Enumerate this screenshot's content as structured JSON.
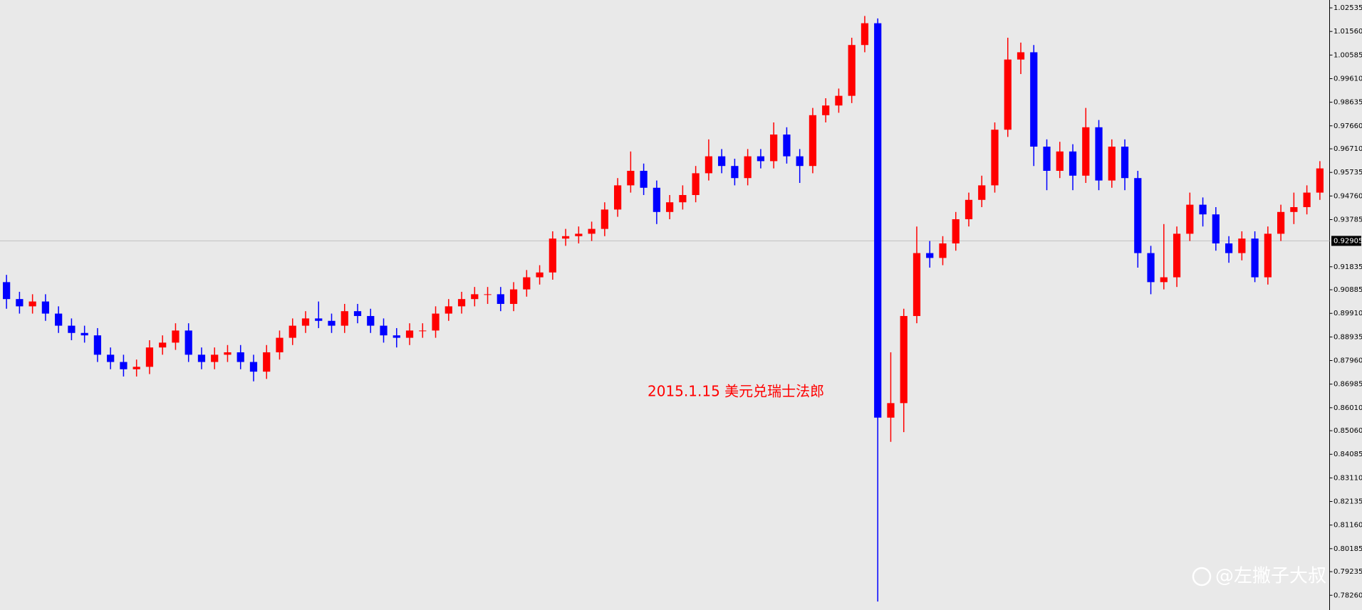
{
  "chart_data": {
    "type": "candlestick",
    "annotation": "2015.1.15 美元兑瑞士法郎",
    "watermark": "@左撇子大叔",
    "up_color": "#ff0000",
    "down_color": "#0000ff",
    "ylim": [
      0.7765,
      1.0286
    ],
    "yticks": [
      1.02535,
      {
        "value": 1.0156,
        "label": "1.01560"
      },
      1.00585,
      {
        "value": 0.9961,
        "label": "0.99610"
      },
      0.98635,
      {
        "value": 0.9766,
        "label": "0.97660"
      },
      {
        "value": 0.9671,
        "label": "0.96710"
      },
      0.95735,
      {
        "value": 0.9476,
        "label": "0.94760"
      },
      0.93785,
      0.91835,
      0.90885,
      {
        "value": 0.8991,
        "label": "0.89910"
      },
      0.88935,
      {
        "value": 0.8796,
        "label": "0.87960"
      },
      0.86985,
      {
        "value": 0.8601,
        "label": "0.86010"
      },
      {
        "value": 0.8506,
        "label": "0.85060"
      },
      0.84085,
      {
        "value": 0.8311,
        "label": "0.83110"
      },
      0.82135,
      {
        "value": 0.8116,
        "label": "0.81160"
      },
      0.80185,
      0.79235,
      {
        "value": 0.7826,
        "label": "0.78260"
      }
    ],
    "current_price": 0.92905,
    "open": [
      0.912,
      0.905,
      0.902,
      0.904,
      0.899,
      0.894,
      0.891,
      0.89,
      0.882,
      0.879,
      0.876,
      0.877,
      0.885,
      0.887,
      0.892,
      0.882,
      0.879,
      0.882,
      0.883,
      0.879,
      0.875,
      0.883,
      0.889,
      0.894,
      0.897,
      0.896,
      0.894,
      0.9,
      0.898,
      0.894,
      0.89,
      0.889,
      0.892,
      0.892,
      0.899,
      0.902,
      0.905,
      0.907,
      0.907,
      0.903,
      0.909,
      0.914,
      0.916,
      0.93,
      0.931,
      0.932,
      0.934,
      0.942,
      0.952,
      0.958,
      0.951,
      0.941,
      0.945,
      0.948,
      0.957,
      0.964,
      0.96,
      0.955,
      0.964,
      0.962,
      0.973,
      0.964,
      0.96,
      0.981,
      0.985,
      0.989,
      1.01,
      1.019,
      0.856,
      0.862,
      0.898,
      0.924,
      0.922,
      0.928,
      0.938,
      0.946,
      0.952,
      0.975,
      1.004,
      1.007,
      0.968,
      0.958,
      0.966,
      0.956,
      0.976,
      0.954,
      0.968,
      0.955,
      0.924,
      0.912,
      0.914,
      0.932,
      0.944,
      0.94,
      0.928,
      0.924,
      0.93,
      0.914,
      0.932,
      0.941,
      0.943,
      0.949
    ],
    "high": [
      0.915,
      0.908,
      0.907,
      0.907,
      0.902,
      0.897,
      0.894,
      0.893,
      0.885,
      0.882,
      0.88,
      0.888,
      0.89,
      0.895,
      0.895,
      0.885,
      0.885,
      0.886,
      0.886,
      0.882,
      0.886,
      0.892,
      0.897,
      0.9,
      0.904,
      0.899,
      0.903,
      0.903,
      0.901,
      0.897,
      0.893,
      0.895,
      0.895,
      0.902,
      0.905,
      0.908,
      0.91,
      0.91,
      0.91,
      0.912,
      0.917,
      0.919,
      0.933,
      0.934,
      0.935,
      0.937,
      0.945,
      0.955,
      0.966,
      0.961,
      0.954,
      0.948,
      0.952,
      0.96,
      0.971,
      0.967,
      0.963,
      0.967,
      0.967,
      0.978,
      0.976,
      0.967,
      0.984,
      0.988,
      0.992,
      1.013,
      1.022,
      1.021,
      0.883,
      0.901,
      0.935,
      0.929,
      0.931,
      0.941,
      0.949,
      0.956,
      0.978,
      1.013,
      1.011,
      1.01,
      0.971,
      0.97,
      0.969,
      0.984,
      0.979,
      0.971,
      0.971,
      0.958,
      0.927,
      0.936,
      0.935,
      0.949,
      0.947,
      0.943,
      0.931,
      0.933,
      0.933,
      0.935,
      0.944,
      0.949,
      0.952,
      0.962
    ],
    "low": [
      0.901,
      0.899,
      0.899,
      0.896,
      0.891,
      0.888,
      0.887,
      0.879,
      0.876,
      0.873,
      0.873,
      0.874,
      0.882,
      0.884,
      0.879,
      0.876,
      0.876,
      0.879,
      0.876,
      0.871,
      0.872,
      0.88,
      0.886,
      0.891,
      0.893,
      0.891,
      0.891,
      0.895,
      0.891,
      0.887,
      0.885,
      0.886,
      0.889,
      0.889,
      0.896,
      0.899,
      0.902,
      0.903,
      0.9,
      0.9,
      0.906,
      0.911,
      0.913,
      0.927,
      0.928,
      0.929,
      0.931,
      0.939,
      0.949,
      0.948,
      0.936,
      0.938,
      0.942,
      0.945,
      0.954,
      0.957,
      0.952,
      0.952,
      0.959,
      0.959,
      0.961,
      0.953,
      0.957,
      0.978,
      0.982,
      0.986,
      1.007,
      0.78,
      0.846,
      0.85,
      0.895,
      0.918,
      0.919,
      0.925,
      0.935,
      0.943,
      0.949,
      0.972,
      0.998,
      0.96,
      0.95,
      0.955,
      0.95,
      0.953,
      0.95,
      0.951,
      0.95,
      0.918,
      0.907,
      0.909,
      0.91,
      0.929,
      0.935,
      0.925,
      0.92,
      0.921,
      0.912,
      0.911,
      0.929,
      0.936,
      0.94,
      0.946
    ],
    "close": [
      0.905,
      0.902,
      0.904,
      0.899,
      0.894,
      0.891,
      0.89,
      0.882,
      0.879,
      0.876,
      0.877,
      0.885,
      0.887,
      0.892,
      0.882,
      0.879,
      0.882,
      0.883,
      0.879,
      0.875,
      0.883,
      0.889,
      0.894,
      0.897,
      0.896,
      0.894,
      0.9,
      0.898,
      0.894,
      0.89,
      0.889,
      0.892,
      0.892,
      0.899,
      0.902,
      0.905,
      0.907,
      0.907,
      0.903,
      0.909,
      0.914,
      0.916,
      0.93,
      0.931,
      0.932,
      0.934,
      0.942,
      0.952,
      0.958,
      0.951,
      0.941,
      0.945,
      0.948,
      0.957,
      0.964,
      0.96,
      0.955,
      0.964,
      0.962,
      0.973,
      0.964,
      0.96,
      0.981,
      0.985,
      0.989,
      1.01,
      1.019,
      0.856,
      0.862,
      0.898,
      0.924,
      0.922,
      0.928,
      0.938,
      0.946,
      0.952,
      0.975,
      1.004,
      1.007,
      0.968,
      0.958,
      0.966,
      0.956,
      0.976,
      0.954,
      0.968,
      0.955,
      0.924,
      0.912,
      0.914,
      0.932,
      0.944,
      0.94,
      0.928,
      0.924,
      0.93,
      0.914,
      0.932,
      0.941,
      0.943,
      0.949,
      0.959
    ]
  }
}
